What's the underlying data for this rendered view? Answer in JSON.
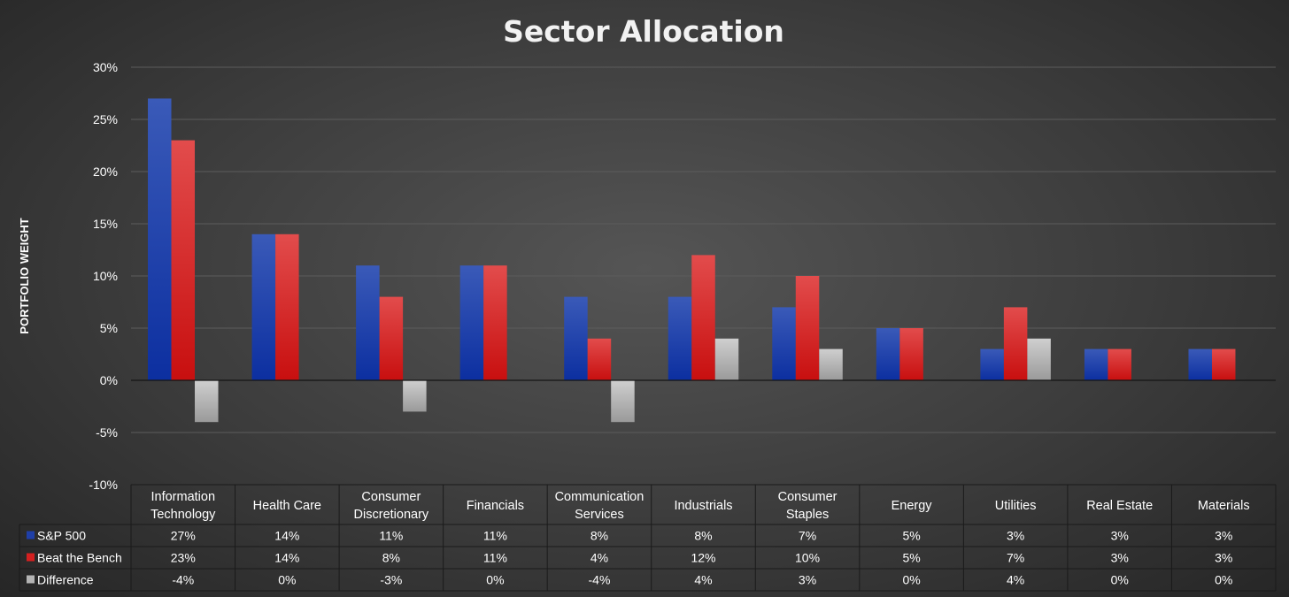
{
  "chart_data": {
    "type": "bar",
    "title": "Sector Allocation",
    "ylabel": "PORTFOLIO WEIGHT",
    "ylim": [
      -10,
      30
    ],
    "yticks": [
      "30%",
      "25%",
      "20%",
      "15%",
      "10%",
      "5%",
      "0%",
      "-5%",
      "-10%"
    ],
    "grid": true,
    "legend": "data-table",
    "categories": [
      [
        "Information",
        "Technology"
      ],
      [
        "Health Care"
      ],
      [
        "Consumer",
        "Discretionary"
      ],
      [
        "Financials"
      ],
      [
        "Communication",
        "Services"
      ],
      [
        "Industrials"
      ],
      [
        "Consumer",
        "Staples"
      ],
      [
        "Energy"
      ],
      [
        "Utilities"
      ],
      [
        "Real Estate"
      ],
      [
        "Materials"
      ]
    ],
    "series": [
      {
        "name": "S&P 500",
        "color": "#1f3fa8",
        "values": [
          27,
          14,
          11,
          11,
          8,
          8,
          7,
          5,
          3,
          3,
          3
        ],
        "labels": [
          "27%",
          "14%",
          "11%",
          "11%",
          "8%",
          "8%",
          "7%",
          "5%",
          "3%",
          "3%",
          "3%"
        ]
      },
      {
        "name": "Beat the Bench",
        "color": "#d42020",
        "values": [
          23,
          14,
          8,
          11,
          4,
          12,
          10,
          5,
          7,
          3,
          3
        ],
        "labels": [
          "23%",
          "14%",
          "8%",
          "11%",
          "4%",
          "12%",
          "10%",
          "5%",
          "7%",
          "3%",
          "3%"
        ]
      },
      {
        "name": "Difference",
        "color": "#b4b4b4",
        "values": [
          -4,
          0,
          -3,
          0,
          -4,
          4,
          3,
          0,
          4,
          0,
          0
        ],
        "labels": [
          "-4%",
          "0%",
          "-3%",
          "0%",
          "-4%",
          "4%",
          "3%",
          "0%",
          "4%",
          "0%",
          "0%"
        ]
      }
    ]
  }
}
